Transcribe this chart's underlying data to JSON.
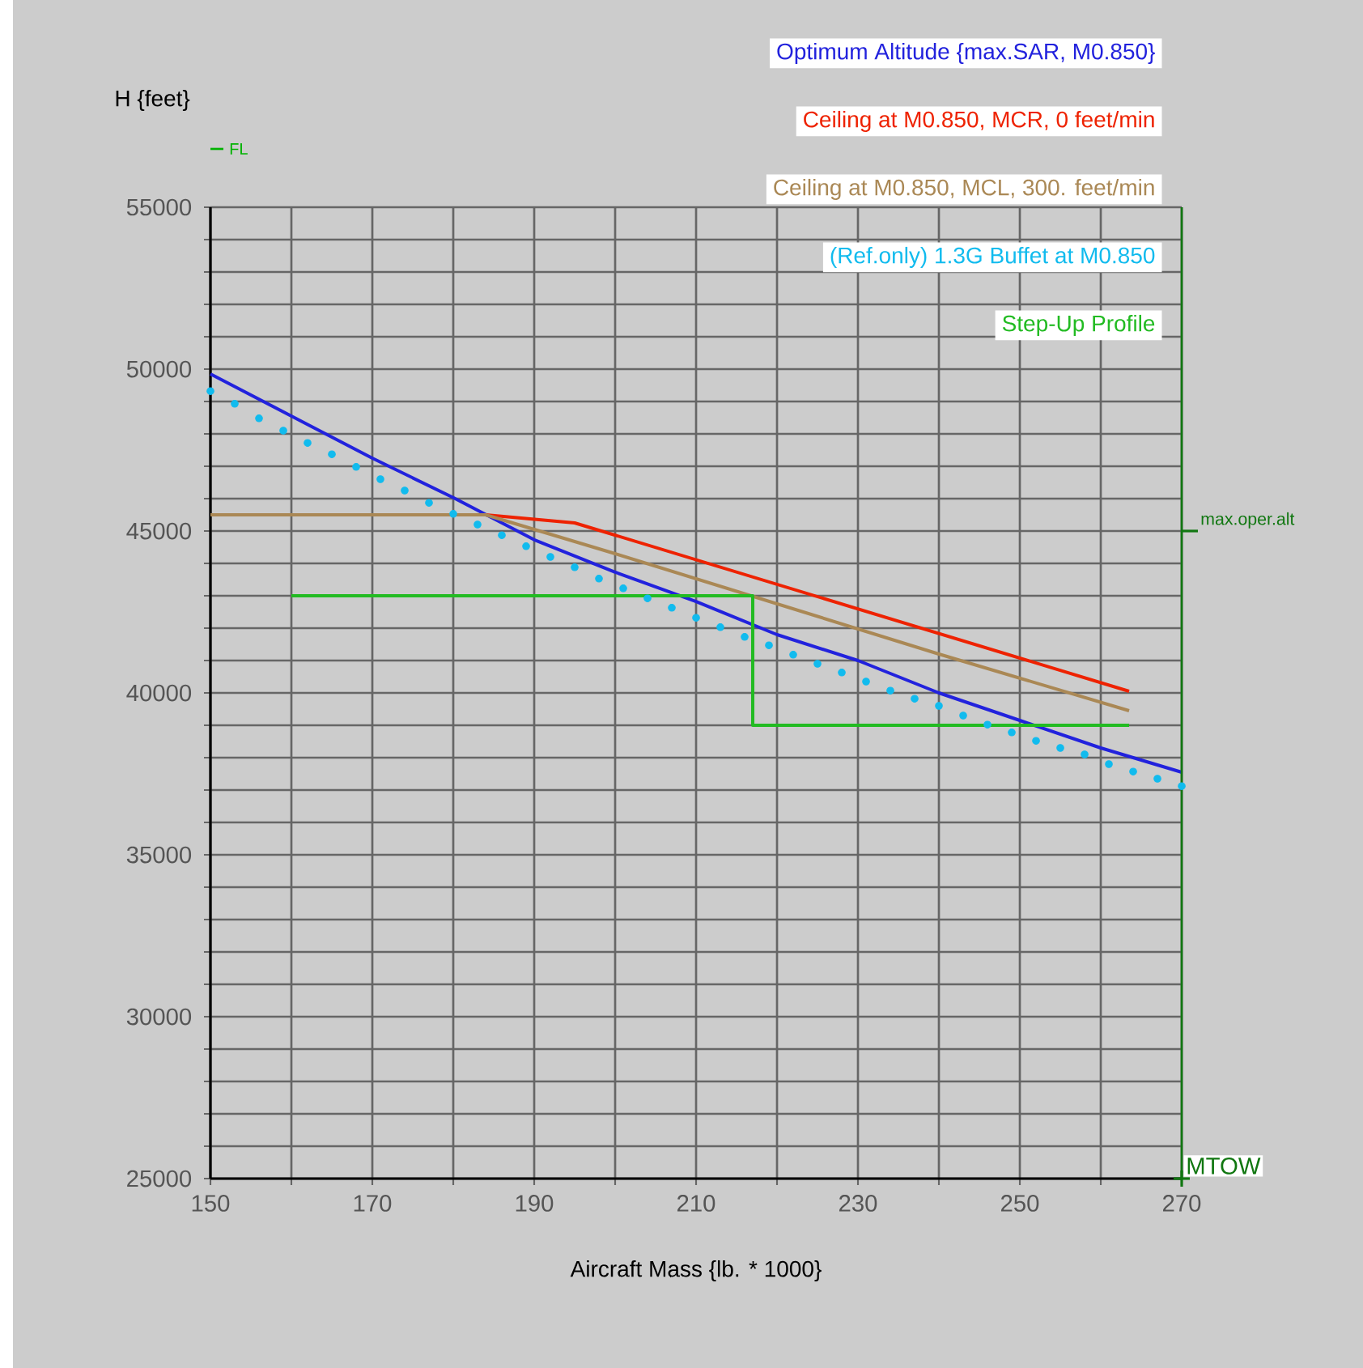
{
  "chart_data": {
    "type": "line",
    "xlabel": "Aircraft Mass {lb. * 1000}",
    "ylabel": "H {feet}",
    "xlim": [
      150,
      270
    ],
    "ylim": [
      25000,
      55000
    ],
    "xticks": [
      150,
      {
        "value": 160,
        "label": null
      },
      170,
      {
        "value": 180,
        "label": null
      },
      190,
      {
        "value": 200,
        "label": null
      },
      210,
      {
        "value": 220,
        "label": null
      },
      230,
      {
        "value": 240,
        "label": null
      },
      250,
      {
        "value": 260,
        "label": null
      },
      270
    ],
    "yticks": [
      25000,
      {
        "value": 26000,
        "label": null
      },
      {
        "value": 27000,
        "label": null
      },
      {
        "value": 28000,
        "label": null
      },
      {
        "value": 29000,
        "label": null
      },
      30000,
      {
        "value": 31000,
        "label": null
      },
      {
        "value": 32000,
        "label": null
      },
      {
        "value": 33000,
        "label": null
      },
      {
        "value": 34000,
        "label": null
      },
      35000,
      {
        "value": 36000,
        "label": null
      },
      {
        "value": 37000,
        "label": null
      },
      {
        "value": 38000,
        "label": null
      },
      {
        "value": 39000,
        "label": null
      },
      40000,
      {
        "value": 41000,
        "label": null
      },
      {
        "value": 42000,
        "label": null
      },
      {
        "value": 43000,
        "label": null
      },
      {
        "value": 44000,
        "label": null
      },
      45000,
      {
        "value": 46000,
        "label": null
      },
      {
        "value": 47000,
        "label": null
      },
      {
        "value": 48000,
        "label": null
      },
      {
        "value": 49000,
        "label": null
      },
      50000,
      {
        "value": 51000,
        "label": null
      },
      {
        "value": 52000,
        "label": null
      },
      {
        "value": 53000,
        "label": null
      },
      {
        "value": 54000,
        "label": null
      },
      55000
    ],
    "grid": true,
    "legend": "top right",
    "series": [
      {
        "name": "Optimum Altitude {max.SAR, M0.850}",
        "color": "#2222dd",
        "marker": "none",
        "x": [
          150,
          160,
          170,
          180,
          190,
          200,
          210,
          220,
          230,
          240,
          250,
          260,
          270
        ],
        "values": [
          49850,
          48550,
          47250,
          46030,
          44730,
          43730,
          42820,
          41800,
          41000,
          40000,
          39150,
          38300,
          37550
        ]
      },
      {
        "name": "Ceiling at M0.850, MCR, 0 feet/min",
        "color": "#ee2200",
        "marker": "none",
        "x": [
          184,
          195,
          263.5
        ],
        "values": [
          45500,
          45250,
          40050
        ]
      },
      {
        "name": "Ceiling at M0.850, MCL, 300. feet/min",
        "color": "#aa8855",
        "marker": "none",
        "x": [
          150,
          184,
          200,
          240,
          263.5
        ],
        "values": [
          45500,
          45500,
          44300,
          41200,
          39450
        ]
      },
      {
        "name": "(Ref.only) 1.3G Buffet at M0.850",
        "color": "#11bbee",
        "type": "scatter",
        "marker": "circle",
        "x": [
          150,
          153,
          156,
          159,
          162,
          165,
          168,
          171,
          174,
          177,
          180,
          183,
          186,
          189,
          192,
          195,
          198,
          201,
          204,
          207,
          210,
          213,
          216,
          219,
          222,
          225,
          228,
          231,
          234,
          237,
          240,
          243,
          246,
          249,
          252,
          255,
          258,
          261,
          264,
          267,
          270
        ],
        "values": [
          49320,
          48930,
          48480,
          48100,
          47720,
          47370,
          46980,
          46600,
          46250,
          45870,
          45530,
          45200,
          44870,
          44530,
          44200,
          43880,
          43530,
          43230,
          42920,
          42630,
          42320,
          42030,
          41730,
          41470,
          41180,
          40900,
          40630,
          40350,
          40070,
          39820,
          39600,
          39300,
          39020,
          38780,
          38520,
          38300,
          38100,
          37800,
          37570,
          37350,
          37120
        ]
      },
      {
        "name": "Step-Up Profile",
        "color": "#22bb22",
        "marker": "none",
        "x": [
          160,
          217,
          217,
          263.5
        ],
        "values": [
          43000,
          43000,
          39000,
          39000
        ]
      }
    ],
    "ref_lines": [
      {
        "axis": "y",
        "value": 45000,
        "label": "max.oper.alt",
        "color": "#117711"
      },
      {
        "axis": "x",
        "value": 270,
        "label": "MTOW",
        "color": "#117711"
      }
    ],
    "annotations": [
      "FL"
    ]
  }
}
